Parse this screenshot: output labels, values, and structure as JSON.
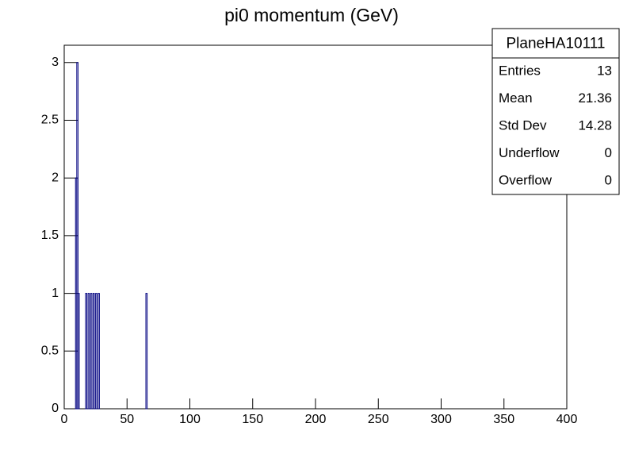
{
  "chart_data": {
    "type": "histogram",
    "title": "pi0 momentum (GeV)",
    "bins": [
      0,
      9,
      10,
      11,
      12,
      17,
      18,
      19,
      20,
      21,
      22,
      23,
      24,
      25,
      26,
      27,
      28,
      65,
      66,
      400
    ],
    "counts": [
      0,
      2,
      3,
      1,
      0,
      1,
      0,
      1,
      0,
      1,
      0,
      1,
      0,
      1,
      0,
      1,
      0,
      1,
      0
    ],
    "color": "#000080",
    "xlim": [
      0,
      400
    ],
    "xticks": [
      0,
      50,
      100,
      150,
      200,
      250,
      300,
      350,
      400
    ],
    "ylim": [
      0,
      3.15
    ],
    "yticks": [
      0,
      0.5,
      1,
      1.5,
      2,
      2.5,
      3
    ],
    "stats_box": {
      "title": "PlaneHA10111",
      "labels": [
        "Entries",
        "Mean",
        "Std Dev",
        "Underflow",
        "Overflow"
      ],
      "values": [
        13,
        21.36,
        14.28,
        0,
        0
      ]
    }
  }
}
